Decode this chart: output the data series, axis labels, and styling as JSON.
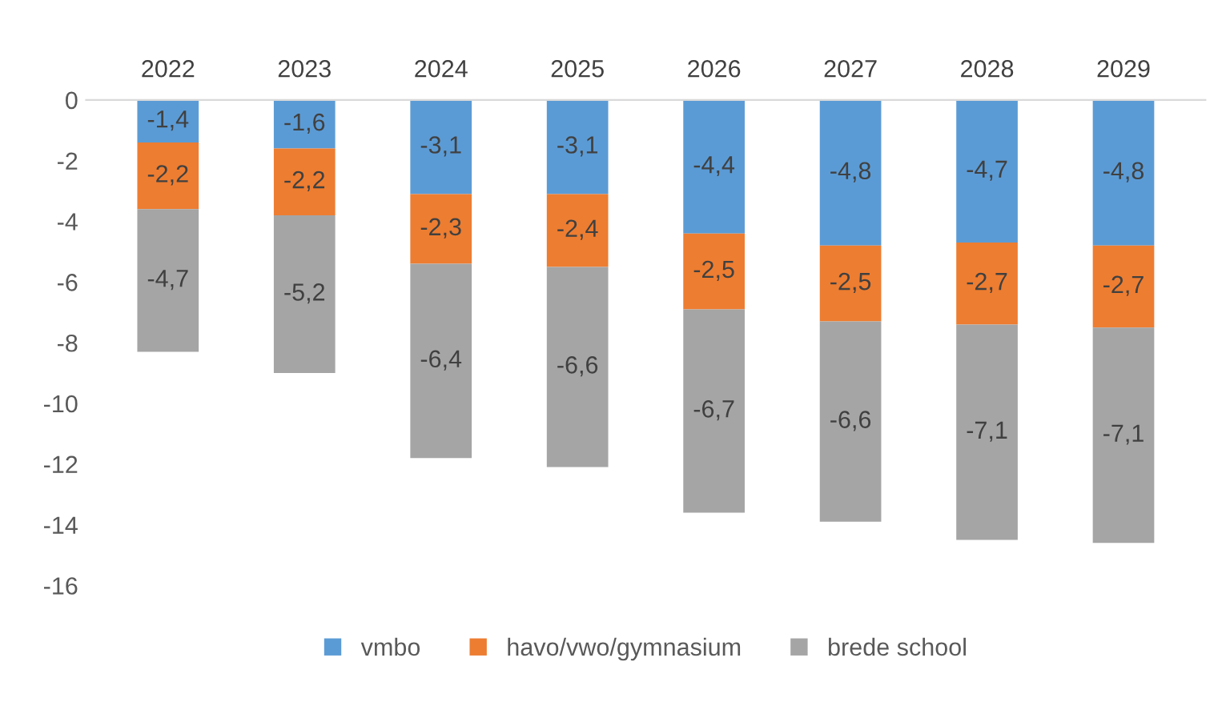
{
  "chart_data": {
    "type": "bar",
    "stacked": true,
    "categories": [
      "2022",
      "2023",
      "2024",
      "2025",
      "2026",
      "2027",
      "2028",
      "2029"
    ],
    "series": [
      {
        "name": "vmbo",
        "color": "#5b9bd5",
        "values": [
          -1.4,
          -1.6,
          -3.1,
          -3.1,
          -4.4,
          -4.8,
          -4.7,
          -4.8
        ],
        "value_labels": [
          "-1,4",
          "-1,6",
          "-3,1",
          "-3,1",
          "-4,4",
          "-4,8",
          "-4,7",
          "-4,8"
        ]
      },
      {
        "name": "havo/vwo/gymnasium",
        "color": "#ed7d31",
        "values": [
          -2.2,
          -2.2,
          -2.3,
          -2.4,
          -2.5,
          -2.5,
          -2.7,
          -2.7
        ],
        "value_labels": [
          "-2,2",
          "-2,2",
          "-2,3",
          "-2,4",
          "-2,5",
          "-2,5",
          "-2,7",
          "-2,7"
        ]
      },
      {
        "name": "brede school",
        "color": "#a5a5a5",
        "values": [
          -4.7,
          -5.2,
          -6.4,
          -6.6,
          -6.7,
          -6.6,
          -7.1,
          -7.1
        ],
        "value_labels": [
          "-4,7",
          "-5,2",
          "-6,4",
          "-6,6",
          "-6,7",
          "-6,6",
          "-7,1",
          "-7,1"
        ]
      }
    ],
    "ylim": [
      -16,
      0
    ],
    "yticks": [
      0,
      -2,
      -4,
      -6,
      -8,
      -10,
      -12,
      -14,
      -16
    ],
    "grid": false,
    "legend": "bottom"
  }
}
